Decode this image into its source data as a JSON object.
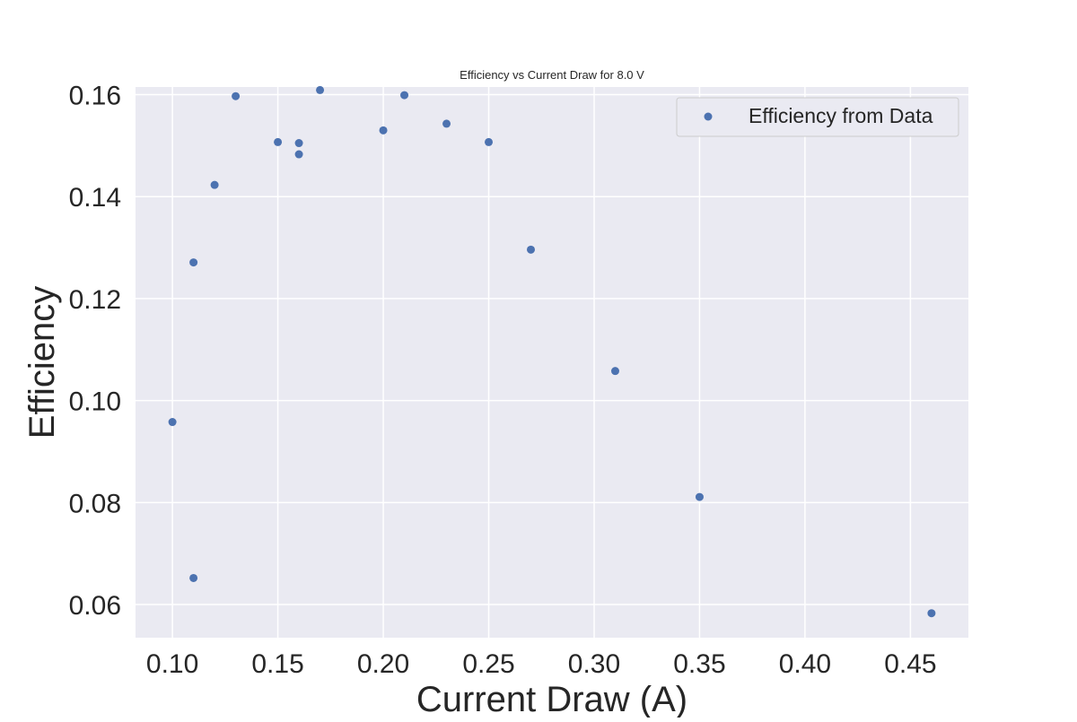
{
  "chart_data": {
    "type": "scatter",
    "title": "Efficiency vs Current Draw for 8.0 V",
    "xlabel": "Current Draw (A)",
    "ylabel": "Efficiency",
    "xlim": [
      0.0825,
      0.4775
    ],
    "ylim": [
      0.0535,
      0.1615
    ],
    "xticks": [
      0.1,
      0.15,
      0.2,
      0.25,
      0.3,
      0.35,
      0.4,
      0.45
    ],
    "xtick_labels": [
      "0.10",
      "0.15",
      "0.20",
      "0.25",
      "0.30",
      "0.35",
      "0.40",
      "0.45"
    ],
    "yticks": [
      0.06,
      0.08,
      0.1,
      0.12,
      0.14,
      0.16
    ],
    "ytick_labels": [
      "0.06",
      "0.08",
      "0.10",
      "0.12",
      "0.14",
      "0.16"
    ],
    "grid": true,
    "legend_position": "top-right",
    "background_color": "#eaeaf2",
    "grid_color": "#ffffff",
    "series": [
      {
        "name": "Efficiency from Data",
        "color": "#4c72b0",
        "x": [
          0.1,
          0.11,
          0.11,
          0.12,
          0.13,
          0.15,
          0.16,
          0.16,
          0.17,
          0.2,
          0.21,
          0.23,
          0.25,
          0.27,
          0.31,
          0.35,
          0.46
        ],
        "y": [
          0.0958,
          0.0652,
          0.1271,
          0.1423,
          0.1597,
          0.1507,
          0.1483,
          0.1505,
          0.1609,
          0.153,
          0.1599,
          0.1543,
          0.1507,
          0.1296,
          0.1058,
          0.0811,
          0.0583
        ]
      }
    ]
  }
}
